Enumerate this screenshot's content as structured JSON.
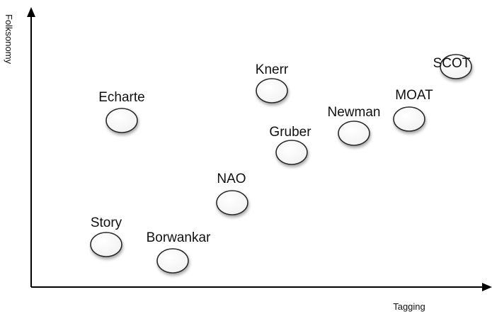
{
  "axes": {
    "x_label": "Tagging",
    "y_label": "Folksonomy"
  },
  "nodes": [
    {
      "label": "SCOT"
    },
    {
      "label": "Knerr"
    },
    {
      "label": "MOAT"
    },
    {
      "label": "Echarte"
    },
    {
      "label": "Newman"
    },
    {
      "label": "Gruber"
    },
    {
      "label": "NAO"
    },
    {
      "label": "Story"
    },
    {
      "label": "Borwankar"
    }
  ]
}
